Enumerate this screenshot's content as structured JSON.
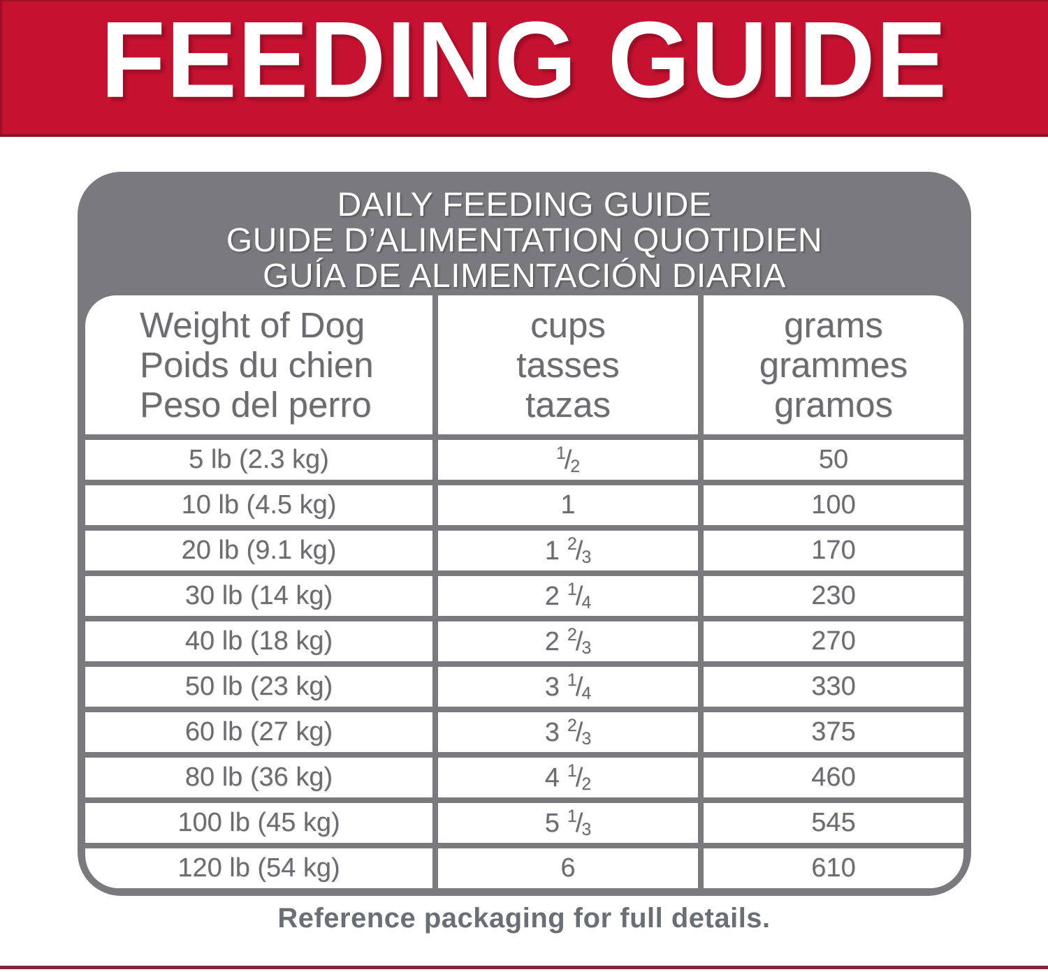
{
  "banner": {
    "title": "FEEDING GUIDE",
    "bg_color": "#C41230",
    "text_color": "#FFFFFF"
  },
  "card": {
    "bg_color": "#7A7A7E",
    "title_lines": [
      "DAILY FEEDING GUIDE",
      "GUIDE D’ALIMENTATION QUOTIDIEN",
      "GUÍA DE ALIMENTACIÓN DIARIA"
    ]
  },
  "table": {
    "text_color": "#6C6C70",
    "fraction_separator": "/",
    "columns": [
      {
        "id": "weight",
        "header_lines": [
          "Weight of Dog",
          "Poids du chien",
          "Peso del perro"
        ]
      },
      {
        "id": "cups",
        "header_lines": [
          "cups",
          "tasses",
          "tazas"
        ]
      },
      {
        "id": "grams",
        "header_lines": [
          "grams",
          "grammes",
          "gramos"
        ]
      }
    ],
    "rows": [
      {
        "weight": "5 lb (2.3 kg)",
        "cups": {
          "whole": "",
          "num": "1",
          "den": "2"
        },
        "grams": "50"
      },
      {
        "weight": "10 lb (4.5 kg)",
        "cups": {
          "whole": "1",
          "num": "",
          "den": ""
        },
        "grams": "100"
      },
      {
        "weight": "20 lb (9.1 kg)",
        "cups": {
          "whole": "1",
          "num": "2",
          "den": "3"
        },
        "grams": "170"
      },
      {
        "weight": "30 lb (14 kg)",
        "cups": {
          "whole": "2",
          "num": "1",
          "den": "4"
        },
        "grams": "230"
      },
      {
        "weight": "40 lb (18 kg)",
        "cups": {
          "whole": "2",
          "num": "2",
          "den": "3"
        },
        "grams": "270"
      },
      {
        "weight": "50 lb (23 kg)",
        "cups": {
          "whole": "3",
          "num": "1",
          "den": "4"
        },
        "grams": "330"
      },
      {
        "weight": "60 lb (27 kg)",
        "cups": {
          "whole": "3",
          "num": "2",
          "den": "3"
        },
        "grams": "375"
      },
      {
        "weight": "80 lb (36 kg)",
        "cups": {
          "whole": "4",
          "num": "1",
          "den": "2"
        },
        "grams": "460"
      },
      {
        "weight": "100 lb (45 kg)",
        "cups": {
          "whole": "5",
          "num": "1",
          "den": "3"
        },
        "grams": "545"
      },
      {
        "weight": "120 lb (54 kg)",
        "cups": {
          "whole": "6",
          "num": "",
          "den": ""
        },
        "grams": "610"
      }
    ]
  },
  "footer": {
    "note": "Reference packaging for full details."
  }
}
